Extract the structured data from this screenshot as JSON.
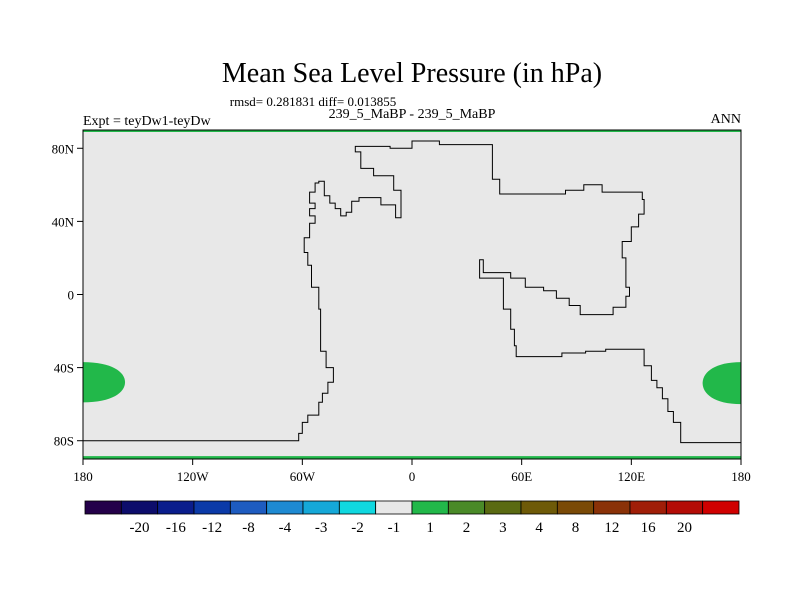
{
  "title": "Mean Sea Level Pressure (in hPa)",
  "stats_line": "rmsd= 0.281831 diff= 0.013855",
  "expt_label": "Expt = teyDw1-teyDw",
  "case_label": "239_5_MaBP - 239_5_MaBP",
  "season_label": "ANN",
  "lat_ticks": [
    {
      "value": 80,
      "label": "80N"
    },
    {
      "value": 40,
      "label": "40N"
    },
    {
      "value": 0,
      "label": "0"
    },
    {
      "value": -40,
      "label": "40S"
    },
    {
      "value": -80,
      "label": "80S"
    }
  ],
  "lon_ticks": [
    {
      "value": -180,
      "label": "180"
    },
    {
      "value": -120,
      "label": "120W"
    },
    {
      "value": -60,
      "label": "60W"
    },
    {
      "value": 0,
      "label": "0"
    },
    {
      "value": 60,
      "label": "60E"
    },
    {
      "value": 120,
      "label": "120E"
    },
    {
      "value": 180,
      "label": "180"
    }
  ],
  "colorbar": {
    "colors": [
      "#24004a",
      "#0d0d6b",
      "#0a1d8c",
      "#0b3aa8",
      "#1e5cc0",
      "#1e8ad2",
      "#15a8d8",
      "#10d8e0",
      "#e8e8e8",
      "#22b84a",
      "#4a8a28",
      "#5a6a12",
      "#6e5a08",
      "#7a4a06",
      "#8a3208",
      "#a01e08",
      "#b40c06",
      "#d00000"
    ],
    "labels": [
      "-20",
      "-16",
      "-12",
      "-8",
      "-4",
      "-3",
      "-2",
      "-1",
      "1",
      "2",
      "3",
      "4",
      "8",
      "12",
      "16",
      "20"
    ]
  },
  "chart_data": {
    "type": "heatmap",
    "title": "Mean Sea Level Pressure (in hPa)",
    "units": "hPa",
    "projection": "cylindrical equidistant",
    "lon_range": [
      -180,
      180
    ],
    "lat_range": [
      -90,
      90
    ],
    "background_value_range": [
      -1,
      1
    ],
    "features": [
      {
        "name": "positive anomaly (1 to 2 hPa), west edge",
        "lon_range": [
          -180,
          -157
        ],
        "lat_range": [
          -59,
          -37
        ]
      },
      {
        "name": "positive anomaly (1 to 2 hPa), east edge",
        "lon_range": [
          159,
          180
        ],
        "lat_range": [
          -60,
          -37
        ]
      },
      {
        "name": "positive anomaly (1 to 2 hPa), north edge",
        "lon_range": [
          -180,
          180
        ],
        "lat_range": [
          89,
          90
        ]
      },
      {
        "name": "positive anomaly (1 to 2 hPa), south edge",
        "lon_range": [
          -180,
          180
        ],
        "lat_range": [
          -90,
          -89
        ]
      }
    ],
    "coastline_outline": [
      [
        -180,
        -80
      ],
      [
        -62,
        -80
      ],
      [
        -62,
        -76
      ],
      [
        -60,
        -76
      ],
      [
        -60,
        -70
      ],
      [
        -57,
        -70
      ],
      [
        -57,
        -66
      ],
      [
        -51,
        -66
      ],
      [
        -51,
        -59
      ],
      [
        -49,
        -59
      ],
      [
        -49,
        -54
      ],
      [
        -46,
        -54
      ],
      [
        -46,
        -48
      ],
      [
        -43,
        -48
      ],
      [
        -43,
        -40
      ],
      [
        -47,
        -40
      ],
      [
        -47,
        -31
      ],
      [
        -50,
        -31
      ],
      [
        -50,
        -8
      ],
      [
        -51,
        -8
      ],
      [
        -51,
        4
      ],
      [
        -55,
        4
      ],
      [
        -55,
        16
      ],
      [
        -57,
        16
      ],
      [
        -57,
        23
      ],
      [
        -59,
        23
      ],
      [
        -59,
        31
      ],
      [
        -56,
        31
      ],
      [
        -56,
        39
      ],
      [
        -53,
        39
      ],
      [
        -53,
        43
      ],
      [
        -56,
        43
      ],
      [
        -56,
        47
      ],
      [
        -53,
        47
      ],
      [
        -53,
        50
      ],
      [
        -56,
        50
      ],
      [
        -56,
        56
      ],
      [
        -53,
        56
      ],
      [
        -53,
        61
      ],
      [
        -51,
        61
      ],
      [
        -51,
        62
      ],
      [
        -48,
        62
      ],
      [
        -48,
        54
      ],
      [
        -45,
        54
      ],
      [
        -45,
        50
      ],
      [
        -42,
        50
      ],
      [
        -42,
        47
      ],
      [
        -39,
        47
      ],
      [
        -39,
        43
      ],
      [
        -36,
        43
      ],
      [
        -36,
        45
      ],
      [
        -33,
        45
      ],
      [
        -33,
        51
      ],
      [
        -29,
        51
      ],
      [
        -29,
        53
      ],
      [
        -17,
        53
      ],
      [
        -17,
        49
      ],
      [
        -9,
        49
      ],
      [
        -9,
        42
      ],
      [
        -6,
        42
      ],
      [
        -6,
        57
      ],
      [
        -10,
        57
      ],
      [
        -10,
        65
      ],
      [
        -21,
        65
      ],
      [
        -21,
        69
      ],
      [
        -28,
        69
      ],
      [
        -28,
        75
      ],
      [
        -28,
        78
      ],
      [
        -31,
        78
      ],
      [
        -31,
        81
      ],
      [
        -12,
        81
      ],
      [
        -12,
        80
      ],
      [
        0,
        80
      ],
      [
        0,
        84
      ],
      [
        15,
        84
      ],
      [
        15,
        82
      ],
      [
        44,
        82
      ],
      [
        44,
        63
      ],
      [
        48,
        63
      ],
      [
        48,
        55
      ],
      [
        84,
        55
      ],
      [
        84,
        57
      ],
      [
        94,
        57
      ],
      [
        94,
        60
      ],
      [
        104,
        60
      ],
      [
        104,
        56
      ],
      [
        126,
        56
      ],
      [
        126,
        52
      ],
      [
        127,
        52
      ],
      [
        127,
        44
      ],
      [
        124,
        44
      ],
      [
        124,
        37
      ],
      [
        120,
        37
      ],
      [
        120,
        29
      ],
      [
        115,
        29
      ],
      [
        115,
        20
      ],
      [
        117,
        20
      ],
      [
        117,
        4
      ],
      [
        119,
        4
      ],
      [
        119,
        -1
      ],
      [
        117,
        -1
      ],
      [
        117,
        -7
      ],
      [
        110,
        -7
      ],
      [
        110,
        -11
      ],
      [
        92,
        -11
      ],
      [
        92,
        -6
      ],
      [
        86,
        -6
      ],
      [
        86,
        -2
      ],
      [
        79,
        -2
      ],
      [
        79,
        2
      ],
      [
        72,
        2
      ],
      [
        72,
        4
      ],
      [
        62,
        4
      ],
      [
        62,
        9
      ],
      [
        54,
        9
      ],
      [
        54,
        12
      ],
      [
        39,
        12
      ],
      [
        39,
        19
      ],
      [
        37,
        19
      ],
      [
        37,
        9
      ],
      [
        50,
        9
      ],
      [
        50,
        -8
      ],
      [
        54,
        -8
      ],
      [
        54,
        -19
      ],
      [
        56,
        -19
      ],
      [
        56,
        -28
      ],
      [
        57,
        -28
      ],
      [
        57,
        -34
      ],
      [
        82,
        -34
      ],
      [
        82,
        -32
      ],
      [
        95,
        -32
      ],
      [
        95,
        -31
      ],
      [
        106,
        -31
      ],
      [
        106,
        -30
      ],
      [
        127,
        -30
      ],
      [
        127,
        -39
      ],
      [
        131,
        -39
      ],
      [
        131,
        -47
      ],
      [
        134,
        -47
      ],
      [
        134,
        -51
      ],
      [
        137,
        -51
      ],
      [
        137,
        -57
      ],
      [
        140,
        -57
      ],
      [
        140,
        -64
      ],
      [
        143,
        -64
      ],
      [
        143,
        -70
      ],
      [
        147,
        -70
      ],
      [
        147,
        -81
      ],
      [
        180,
        -81
      ]
    ]
  }
}
